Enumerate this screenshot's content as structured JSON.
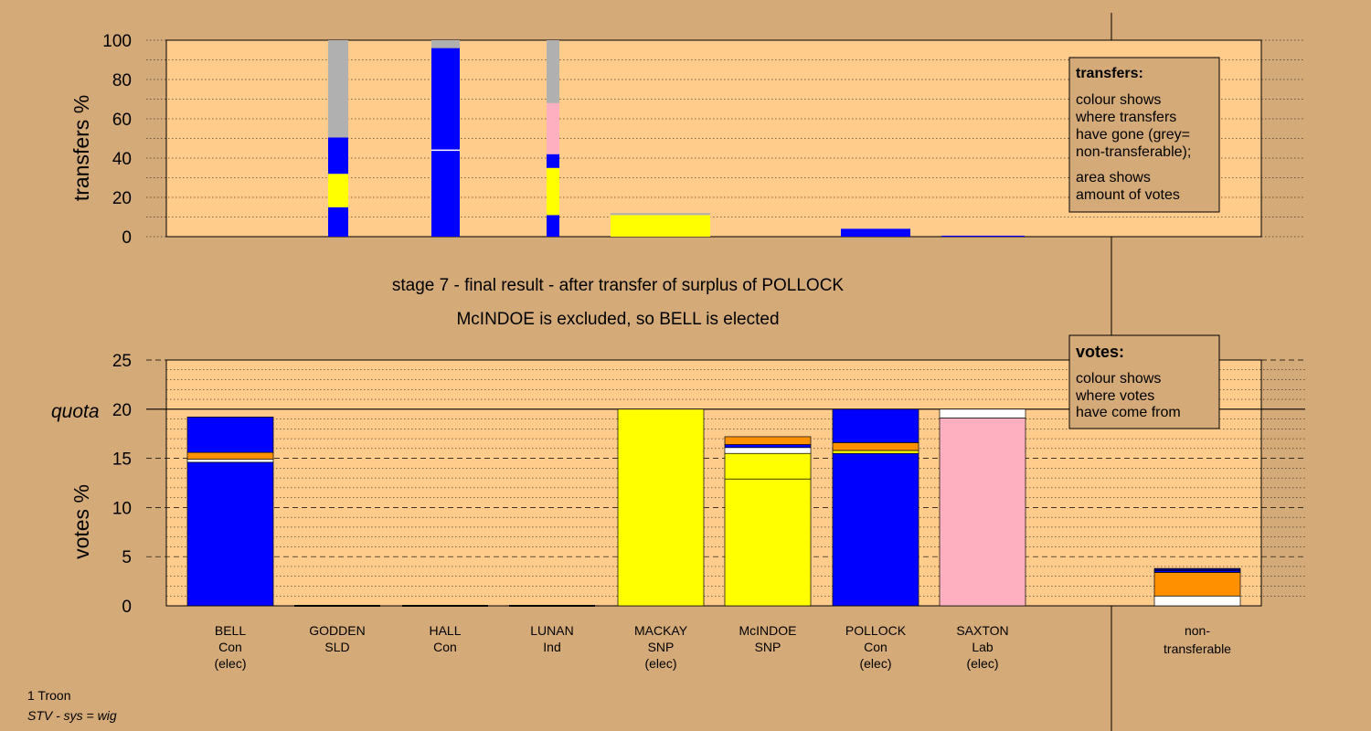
{
  "colors": {
    "background": "#d4aa78",
    "plot_area": "#ffcc8c",
    "blue": "#0000ff",
    "yellow": "#ffff00",
    "pink": "#ffb0c0",
    "orange": "#ff9000",
    "grey": "#b0b0b0",
    "white": "#ffffff",
    "navy": "#000080"
  },
  "headline": {
    "line1": "stage 7 - final result - after transfer of surplus of POLLOCK",
    "line2": "McINDOE is excluded, so BELL is elected"
  },
  "transfers_legend": {
    "title": "transfers:",
    "lines1": [
      "colour shows",
      "where transfers",
      "have gone (grey=",
      "non-transferable);"
    ],
    "lines2": [
      "area shows",
      "amount of votes"
    ]
  },
  "votes_legend": {
    "title": "votes:",
    "lines": [
      "colour shows",
      "where votes",
      "have come from"
    ]
  },
  "footer": {
    "line1": "1 Troon",
    "line2": "STV - sys = wig"
  },
  "candidates": [
    {
      "name": "BELL",
      "party": "Con",
      "status": "(elec)"
    },
    {
      "name": "GODDEN",
      "party": "SLD",
      "status": ""
    },
    {
      "name": "HALL",
      "party": "Con",
      "status": ""
    },
    {
      "name": "LUNAN",
      "party": "Ind",
      "status": ""
    },
    {
      "name": "MACKAY",
      "party": "SNP",
      "status": "(elec)"
    },
    {
      "name": "McINDOE",
      "party": "SNP",
      "status": ""
    },
    {
      "name": "POLLOCK",
      "party": "Con",
      "status": "(elec)"
    },
    {
      "name": "SAXTON",
      "party": "Lab",
      "status": "(elec)"
    }
  ],
  "nontransferable_label": [
    "non-",
    "transferable"
  ],
  "chart_data": [
    {
      "type": "bar",
      "stacked": true,
      "ylabel": "transfers %",
      "ylim": [
        0,
        100
      ],
      "yticks": [
        0,
        20,
        40,
        60,
        80,
        100
      ],
      "bars": [
        {
          "segments": [
            {
              "color": "blue",
              "from": 0,
              "to": 15
            },
            {
              "color": "yellow",
              "from": 15,
              "to": 32
            },
            {
              "color": "blue",
              "from": 32,
              "to": 50.5
            },
            {
              "color": "grey",
              "from": 50.5,
              "to": 100
            }
          ]
        },
        {
          "segments": [
            {
              "color": "blue",
              "from": 0,
              "to": 44
            },
            {
              "color": "blue",
              "from": 44,
              "to": 96
            },
            {
              "color": "grey",
              "from": 96,
              "to": 100
            }
          ]
        },
        {
          "segments": [
            {
              "color": "blue",
              "from": 0,
              "to": 11
            },
            {
              "color": "yellow",
              "from": 11,
              "to": 35
            },
            {
              "color": "blue",
              "from": 35,
              "to": 42
            },
            {
              "color": "pink",
              "from": 42,
              "to": 68
            },
            {
              "color": "grey",
              "from": 68,
              "to": 100
            }
          ]
        },
        {
          "segments": [
            {
              "color": "yellow",
              "from": 0,
              "to": 11
            },
            {
              "color": "grey",
              "from": 11,
              "to": 12
            }
          ]
        },
        {
          "segments": [
            {
              "color": "blue",
              "from": 0,
              "to": 4
            }
          ]
        },
        {
          "segments": [
            {
              "color": "blue",
              "from": 0,
              "to": 0.5
            }
          ]
        }
      ]
    },
    {
      "type": "bar",
      "stacked": true,
      "ylabel": "votes %",
      "ylim": [
        0,
        25
      ],
      "yticks": [
        0,
        5,
        10,
        15,
        20,
        25
      ],
      "quota": 20,
      "quota_label": "quota",
      "bars": [
        {
          "candidate": "BELL",
          "segments": [
            {
              "color": "blue",
              "from": 0,
              "to": 14.6
            },
            {
              "color": "white",
              "from": 14.6,
              "to": 14.9
            },
            {
              "color": "orange",
              "from": 14.9,
              "to": 15.6
            },
            {
              "color": "blue",
              "from": 15.6,
              "to": 19.2
            }
          ]
        },
        {
          "candidate": "GODDEN",
          "segments": []
        },
        {
          "candidate": "HALL",
          "segments": []
        },
        {
          "candidate": "LUNAN",
          "segments": []
        },
        {
          "candidate": "MACKAY",
          "segments": [
            {
              "color": "yellow",
              "from": 0,
              "to": 20
            }
          ]
        },
        {
          "candidate": "McINDOE",
          "segments": [
            {
              "color": "yellow",
              "from": 0,
              "to": 12.9
            },
            {
              "color": "yellow",
              "from": 12.9,
              "to": 15.5
            },
            {
              "color": "white",
              "from": 15.5,
              "to": 16.1
            },
            {
              "color": "blue",
              "from": 16.1,
              "to": 16.4
            },
            {
              "color": "orange",
              "from": 16.4,
              "to": 17.2
            }
          ]
        },
        {
          "candidate": "POLLOCK",
          "segments": [
            {
              "color": "blue",
              "from": 0,
              "to": 15.5
            },
            {
              "color": "yellow",
              "from": 15.5,
              "to": 15.8
            },
            {
              "color": "orange",
              "from": 15.8,
              "to": 16.6
            },
            {
              "color": "blue",
              "from": 16.6,
              "to": 20
            }
          ]
        },
        {
          "candidate": "SAXTON",
          "segments": [
            {
              "color": "pink",
              "from": 0,
              "to": 19.1
            },
            {
              "color": "white",
              "from": 19.1,
              "to": 20
            }
          ]
        },
        {
          "candidate": "non-transferable",
          "segments": [
            {
              "color": "white",
              "from": 0,
              "to": 1
            },
            {
              "color": "orange",
              "from": 1,
              "to": 3.4
            },
            {
              "color": "blue",
              "from": 3.4,
              "to": 3.6
            },
            {
              "color": "navy",
              "from": 3.6,
              "to": 3.8
            }
          ]
        }
      ]
    }
  ]
}
